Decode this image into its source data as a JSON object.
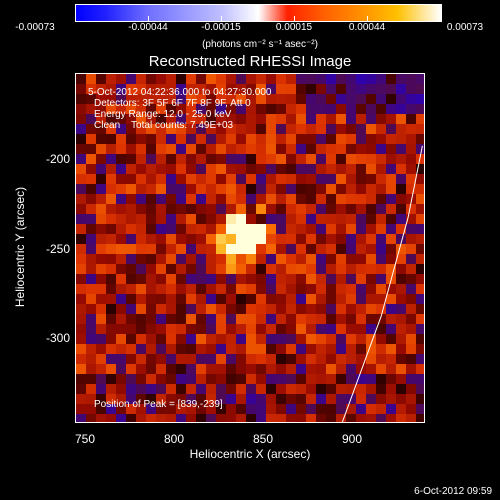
{
  "colorbar": {
    "ticks": [
      "-0.00073",
      "-0.00044",
      "-0.00015",
      "0.00015",
      "0.00044",
      "0.00073"
    ],
    "units": "(photons cm⁻² s⁻¹ asec⁻²)"
  },
  "plot": {
    "title": "Reconstructed RHESSI Image",
    "time_range": "5-Oct-2012 04:22:36.000 to 04:27:30.000",
    "detectors": "Detectors: 3F 5F 6F 7F 8F 9F, Att 0",
    "energy_range": "Energy Range: 12.0 - 25.0 keV",
    "algorithm_counts": "Clean    Total counts: 7.49E+03",
    "peak_position": "Position of Peak = [839,-239]",
    "xlabel": "Heliocentric X (arcsec)",
    "ylabel": "Heliocentric Y (arcsec)",
    "xticks": [
      "750",
      "800",
      "850",
      "900"
    ],
    "yticks": [
      "-200",
      "-250",
      "-300"
    ]
  },
  "chart_data": {
    "type": "heatmap",
    "title": "Reconstructed RHESSI Image",
    "xlabel": "Heliocentric X (arcsec)",
    "ylabel": "Heliocentric Y (arcsec)",
    "xlim": [
      745,
      940
    ],
    "ylim": [
      -345,
      -150
    ],
    "zlim": [
      -0.00073,
      0.00073
    ],
    "peak": {
      "x": 839,
      "y": -239
    },
    "limb_curve": [
      [
        893,
        -345
      ],
      [
        915,
        -285
      ],
      [
        930,
        -230
      ],
      [
        938,
        -190
      ]
    ]
  },
  "footer": {
    "date": "6-Oct-2012 09:59"
  }
}
